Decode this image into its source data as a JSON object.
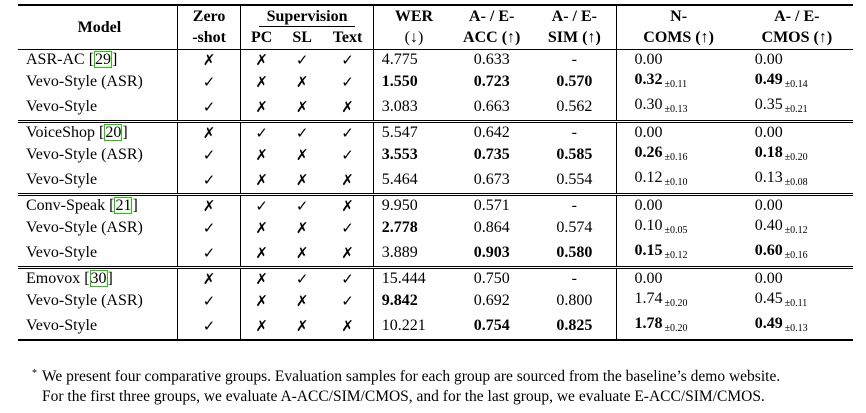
{
  "table": {
    "headers": {
      "model": "Model",
      "zero_shot_1": "Zero",
      "zero_shot_2": "-shot",
      "supervision": "Supervision",
      "pc": "PC",
      "sl": "SL",
      "text": "Text",
      "wer_1": "WER",
      "wer_2": "(↓)",
      "acc_1": "A- / E-",
      "acc_2": "ACC (↑)",
      "sim_1": "A- / E-",
      "sim_2": "SIM (↑)",
      "coms_1": "N-",
      "coms_2": "COMS (↑)",
      "cmos_1": "A- / E-",
      "cmos_2": "CMOS (↑)"
    },
    "groups": [
      {
        "rows": [
          {
            "model": "ASR-AC ",
            "ref": "29",
            "zs": "✗",
            "pc": "✗",
            "sl": "✓",
            "text": "✓",
            "wer": "4.775",
            "wer_b": false,
            "acc": "0.633",
            "acc_b": false,
            "sim": "-",
            "sim_b": false,
            "coms": "0.00",
            "coms_b": false,
            "coms_pm": "",
            "cmos": "0.00",
            "cmos_b": false,
            "cmos_pm": ""
          },
          {
            "model": "Vevo-Style (ASR)",
            "ref": "",
            "zs": "✓",
            "pc": "✗",
            "sl": "✗",
            "text": "✓",
            "wer": "1.550",
            "wer_b": true,
            "acc": "0.723",
            "acc_b": true,
            "sim": "0.570",
            "sim_b": true,
            "coms": "0.32",
            "coms_b": true,
            "coms_pm": "±0.11",
            "cmos": "0.49",
            "cmos_b": true,
            "cmos_pm": "±0.14"
          },
          {
            "model": "Vevo-Style",
            "ref": "",
            "zs": "✓",
            "pc": "✗",
            "sl": "✗",
            "text": "✗",
            "wer": "3.083",
            "wer_b": false,
            "acc": "0.663",
            "acc_b": false,
            "sim": "0.562",
            "sim_b": false,
            "coms": "0.30",
            "coms_b": false,
            "coms_pm": "±0.13",
            "cmos": "0.35",
            "cmos_b": false,
            "cmos_pm": "±0.21"
          }
        ]
      },
      {
        "rows": [
          {
            "model": "VoiceShop ",
            "ref": "20",
            "zs": "✗",
            "pc": "✓",
            "sl": "✓",
            "text": "✓",
            "wer": "5.547",
            "wer_b": false,
            "acc": "0.642",
            "acc_b": false,
            "sim": "-",
            "sim_b": false,
            "coms": "0.00",
            "coms_b": false,
            "coms_pm": "",
            "cmos": "0.00",
            "cmos_b": false,
            "cmos_pm": ""
          },
          {
            "model": "Vevo-Style (ASR)",
            "ref": "",
            "zs": "✓",
            "pc": "✗",
            "sl": "✗",
            "text": "✓",
            "wer": "3.553",
            "wer_b": true,
            "acc": "0.735",
            "acc_b": true,
            "sim": "0.585",
            "sim_b": true,
            "coms": "0.26",
            "coms_b": true,
            "coms_pm": "±0.16",
            "cmos": "0.18",
            "cmos_b": true,
            "cmos_pm": "±0.20"
          },
          {
            "model": "Vevo-Style",
            "ref": "",
            "zs": "✓",
            "pc": "✗",
            "sl": "✗",
            "text": "✗",
            "wer": "5.464",
            "wer_b": false,
            "acc": "0.673",
            "acc_b": false,
            "sim": "0.554",
            "sim_b": false,
            "coms": "0.12",
            "coms_b": false,
            "coms_pm": "±0.10",
            "cmos": "0.13",
            "cmos_b": false,
            "cmos_pm": "±0.08"
          }
        ]
      },
      {
        "rows": [
          {
            "model": "Conv-Speak ",
            "ref": "21",
            "zs": "✗",
            "pc": "✓",
            "sl": "✓",
            "text": "✗",
            "wer": "9.950",
            "wer_b": false,
            "acc": "0.571",
            "acc_b": false,
            "sim": "-",
            "sim_b": false,
            "coms": "0.00",
            "coms_b": false,
            "coms_pm": "",
            "cmos": "0.00",
            "cmos_b": false,
            "cmos_pm": ""
          },
          {
            "model": "Vevo-Style (ASR)",
            "ref": "",
            "zs": "✓",
            "pc": "✗",
            "sl": "✗",
            "text": "✓",
            "wer": "2.778",
            "wer_b": true,
            "acc": "0.864",
            "acc_b": false,
            "sim": "0.574",
            "sim_b": false,
            "coms": "0.10",
            "coms_b": false,
            "coms_pm": "±0.05",
            "cmos": "0.40",
            "cmos_b": false,
            "cmos_pm": "±0.12"
          },
          {
            "model": "Vevo-Style",
            "ref": "",
            "zs": "✓",
            "pc": "✗",
            "sl": "✗",
            "text": "✗",
            "wer": "3.889",
            "wer_b": false,
            "acc": "0.903",
            "acc_b": true,
            "sim": "0.580",
            "sim_b": true,
            "coms": "0.15",
            "coms_b": true,
            "coms_pm": "±0.12",
            "cmos": "0.60",
            "cmos_b": true,
            "cmos_pm": "±0.16"
          }
        ]
      },
      {
        "rows": [
          {
            "model": "Emovox ",
            "ref": "30",
            "zs": "✗",
            "pc": "✗",
            "sl": "✓",
            "text": "✓",
            "wer": "15.444",
            "wer_b": false,
            "acc": "0.750",
            "acc_b": false,
            "sim": "-",
            "sim_b": false,
            "coms": "0.00",
            "coms_b": false,
            "coms_pm": "",
            "cmos": "0.00",
            "cmos_b": false,
            "cmos_pm": ""
          },
          {
            "model": "Vevo-Style (ASR)",
            "ref": "",
            "zs": "✓",
            "pc": "✗",
            "sl": "✗",
            "text": "✓",
            "wer": "9.842",
            "wer_b": true,
            "acc": "0.692",
            "acc_b": false,
            "sim": "0.800",
            "sim_b": false,
            "coms": "1.74",
            "coms_b": false,
            "coms_pm": "±0.20",
            "cmos": "0.45",
            "cmos_b": false,
            "cmos_pm": "±0.11"
          },
          {
            "model": "Vevo-Style",
            "ref": "",
            "zs": "✓",
            "pc": "✗",
            "sl": "✗",
            "text": "✗",
            "wer": "10.221",
            "wer_b": false,
            "acc": "0.754",
            "acc_b": true,
            "sim": "0.825",
            "sim_b": true,
            "coms": "1.78",
            "coms_b": true,
            "coms_pm": "±0.20",
            "cmos": "0.49",
            "cmos_b": true,
            "cmos_pm": "±0.13"
          }
        ]
      }
    ]
  },
  "footnote": {
    "marker": "*",
    "line1": "We present four comparative groups. Evaluation samples for each group are sourced from the baseline’s demo website.",
    "line2": "For the first three groups, we evaluate A-ACC/SIM/CMOS, and for the last group, we evaluate E-ACC/SIM/CMOS."
  }
}
